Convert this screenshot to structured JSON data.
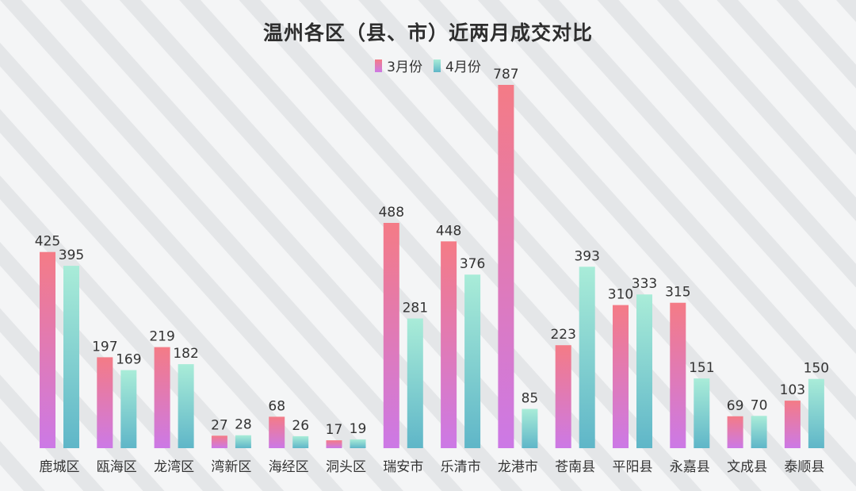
{
  "chart_data": {
    "type": "bar",
    "title": "温州各区（县、市）近两月成交对比",
    "categories": [
      "鹿城区",
      "瓯海区",
      "龙湾区",
      "湾新区",
      "海经区",
      "洞头区",
      "瑞安市",
      "乐清市",
      "龙港市",
      "苍南县",
      "平阳县",
      "永嘉县",
      "文成县",
      "泰顺县"
    ],
    "series": [
      {
        "name": "3月份",
        "values": [
          425,
          197,
          219,
          27,
          68,
          17,
          488,
          448,
          787,
          223,
          310,
          315,
          69,
          103
        ],
        "color_top": "#f47b86",
        "color_bottom": "#cc79e6"
      },
      {
        "name": "4月份",
        "values": [
          395,
          169,
          182,
          28,
          26,
          19,
          281,
          376,
          85,
          393,
          333,
          151,
          70,
          150
        ],
        "color_top": "#a9ecd8",
        "color_bottom": "#5fb6c8"
      }
    ],
    "ylim": [
      0,
      787
    ],
    "grid": false,
    "legend_position": "top-center"
  }
}
